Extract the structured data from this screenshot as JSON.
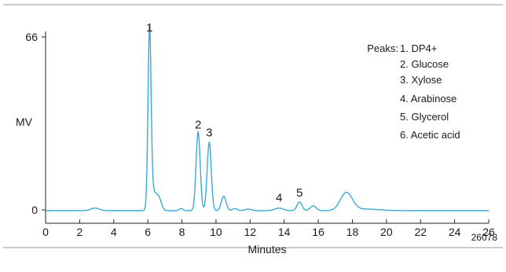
{
  "chart_data": {
    "type": "line",
    "title": "",
    "xlabel": "Minutes",
    "ylabel": "MV",
    "xlim": [
      0,
      26
    ],
    "ylim": [
      0,
      66
    ],
    "x_ticks": [
      "0",
      "2",
      "4",
      "6",
      "8",
      "10",
      "12",
      "14",
      "16",
      "18",
      "20",
      "22",
      "24",
      "26"
    ],
    "y_ticks": [
      "0",
      "66"
    ],
    "grid": false,
    "legend": {
      "heading": "Peaks:",
      "items": [
        "1. DP4+",
        "2. Glucose",
        "3. Xylose",
        "4. Arabinose",
        "5. Glycerol",
        "6. Acetic acid"
      ],
      "placement": "top-right"
    },
    "peak_labels": [
      {
        "label": "1",
        "x": 6.1,
        "y": 66
      },
      {
        "label": "2",
        "x": 8.95,
        "y": 29
      },
      {
        "label": "3",
        "x": 9.6,
        "y": 26
      },
      {
        "label": "4",
        "x": 13.7,
        "y": 1
      },
      {
        "label": "5",
        "x": 14.9,
        "y": 3
      }
    ],
    "series": [
      {
        "color": "#3aa9d6",
        "baseline": -0.3,
        "peaks": [
          {
            "center": 2.9,
            "height": 1.0,
            "width": 0.25
          },
          {
            "center": 6.1,
            "height": 67.0,
            "width": 0.09
          },
          {
            "center": 6.3,
            "height": 7.0,
            "width": 0.18
          },
          {
            "center": 6.65,
            "height": 4.5,
            "width": 0.15
          },
          {
            "center": 7.95,
            "height": 0.8,
            "width": 0.12
          },
          {
            "center": 8.95,
            "height": 30.0,
            "width": 0.12
          },
          {
            "center": 9.6,
            "height": 26.0,
            "width": 0.12
          },
          {
            "center": 10.45,
            "height": 5.5,
            "width": 0.14
          },
          {
            "center": 11.1,
            "height": 0.8,
            "width": 0.15
          },
          {
            "center": 11.9,
            "height": 0.6,
            "width": 0.2
          },
          {
            "center": 13.7,
            "height": 1.0,
            "width": 0.25
          },
          {
            "center": 14.9,
            "height": 3.3,
            "width": 0.15
          },
          {
            "center": 15.7,
            "height": 1.8,
            "width": 0.18
          },
          {
            "center": 17.65,
            "height": 6.8,
            "width": 0.35
          },
          {
            "center": 18.8,
            "height": 0.6,
            "width": 0.8
          }
        ]
      }
    ]
  },
  "figure_id": "26078"
}
